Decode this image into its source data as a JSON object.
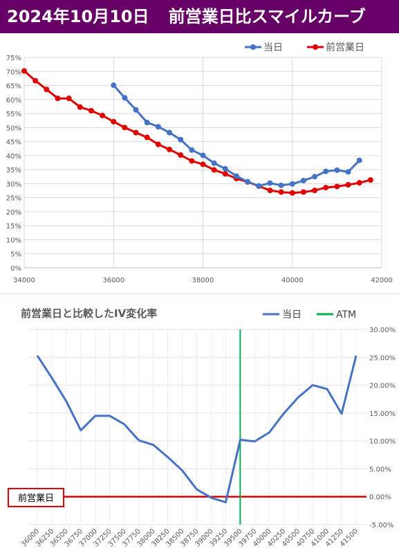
{
  "banner": {
    "date": "2024年10月10日",
    "title": "前営業日比スマイルカーブ"
  },
  "colors": {
    "banner_bg": "#660066",
    "today": "#4472C4",
    "prev_day": "#E00000",
    "atm": "#00B050",
    "change_line": "#4472C4",
    "zero_line": "#E00000",
    "label_box": "#E00000"
  },
  "chart_data": [
    {
      "type": "line",
      "title": "",
      "xlabel": "",
      "ylabel": "",
      "xlim": [
        34000,
        42000
      ],
      "ylim": [
        0,
        0.75
      ],
      "x_ticks": [
        "34000",
        "36000",
        "38000",
        "40000",
        "42000"
      ],
      "y_ticks": [
        "0%",
        "5%",
        "10%",
        "15%",
        "20%",
        "25%",
        "30%",
        "35%",
        "40%",
        "45%",
        "50%",
        "55%",
        "60%",
        "65%",
        "70%",
        "75%"
      ],
      "grid": true,
      "legend": "top-right",
      "series": [
        {
          "name": "当日",
          "color": "#4472C4",
          "x": [
            36000,
            36250,
            36500,
            36750,
            37000,
            37250,
            37500,
            37750,
            38000,
            38250,
            38500,
            38750,
            39000,
            39250,
            39500,
            39750,
            40000,
            40250,
            40500,
            40750,
            41000,
            41250,
            41500
          ],
          "y": [
            0.651,
            0.606,
            0.563,
            0.518,
            0.503,
            0.482,
            0.457,
            0.42,
            0.401,
            0.373,
            0.353,
            0.327,
            0.307,
            0.292,
            0.302,
            0.294,
            0.299,
            0.311,
            0.325,
            0.344,
            0.348,
            0.342,
            0.383
          ]
        },
        {
          "name": "前営業日",
          "color": "#E00000",
          "x": [
            34000,
            34250,
            34500,
            34750,
            35000,
            35250,
            35500,
            35750,
            36000,
            36250,
            36500,
            36750,
            37000,
            37250,
            37500,
            37750,
            38000,
            38250,
            38500,
            38750,
            39000,
            39250,
            39500,
            39750,
            40000,
            40250,
            40500,
            40750,
            41000,
            41250,
            41500,
            41750
          ],
          "y": [
            0.702,
            0.667,
            0.636,
            0.604,
            0.604,
            0.573,
            0.56,
            0.543,
            0.521,
            0.5,
            0.482,
            0.465,
            0.44,
            0.422,
            0.402,
            0.381,
            0.369,
            0.349,
            0.335,
            0.318,
            0.306,
            0.291,
            0.276,
            0.27,
            0.267,
            0.27,
            0.276,
            0.286,
            0.29,
            0.296,
            0.303,
            0.313
          ]
        }
      ]
    },
    {
      "type": "line",
      "title": "前営業日と比較したIV変化率",
      "xlabel": "",
      "ylabel": "",
      "ylim": [
        -0.05,
        0.3
      ],
      "categories": [
        "36000",
        "36250",
        "36500",
        "36750",
        "37000",
        "37250",
        "37500",
        "37750",
        "38000",
        "38250",
        "38500",
        "38750",
        "39000",
        "39250",
        "39500",
        "39750",
        "40000",
        "40250",
        "40500",
        "40750",
        "41000",
        "41250",
        "41500"
      ],
      "y_ticks": [
        "-5.00%",
        "0.00%",
        "5.00%",
        "10.00%",
        "15.00%",
        "20.00%",
        "25.00%",
        "30.00%"
      ],
      "grid": true,
      "legend": "top-right",
      "series": [
        {
          "name": "当日",
          "color": "#4472C4",
          "values": [
            0.253,
            0.213,
            0.171,
            0.119,
            0.145,
            0.145,
            0.13,
            0.101,
            0.093,
            0.071,
            0.047,
            0.013,
            -0.002,
            -0.01,
            0.102,
            0.099,
            0.115,
            0.149,
            0.178,
            0.2,
            0.193,
            0.149,
            0.253
          ]
        },
        {
          "name": "前営業日",
          "color": "#E00000",
          "values": [
            0,
            0,
            0,
            0,
            0,
            0,
            0,
            0,
            0,
            0,
            0,
            0,
            0,
            0,
            0,
            0,
            0,
            0,
            0,
            0,
            0,
            0,
            0
          ]
        }
      ],
      "atm": {
        "label": "ATM",
        "category": "39500",
        "color": "#00B050"
      }
    }
  ]
}
